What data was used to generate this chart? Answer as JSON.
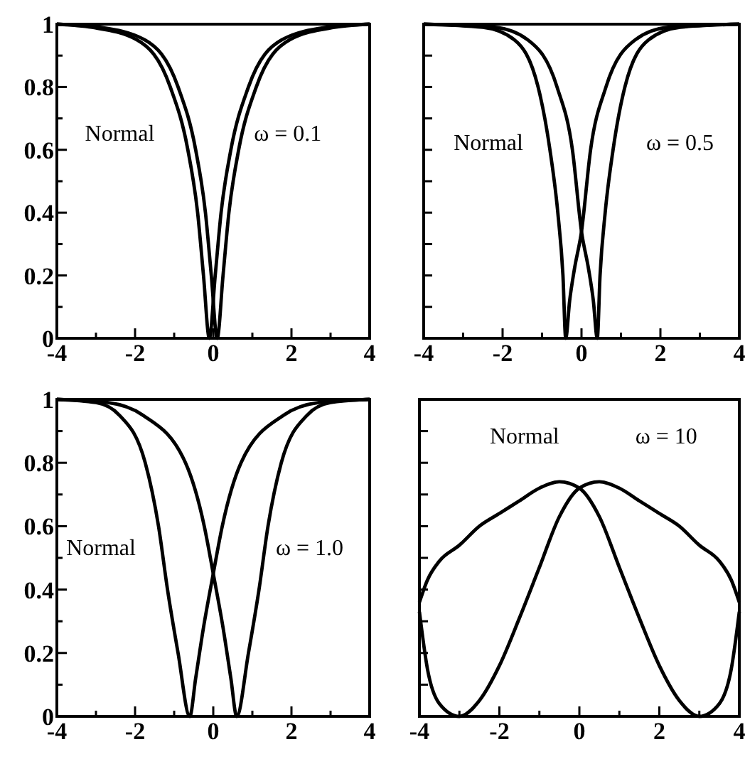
{
  "chart_data": [
    {
      "type": "line",
      "annotations": [
        "Normal",
        "ω = 0.1"
      ],
      "xlim": [
        -4,
        4
      ],
      "ylim": [
        0,
        1
      ],
      "xticks": [
        -4,
        {
          "value": -3,
          "label": null
        },
        -2,
        {
          "value": -1,
          "label": null
        },
        0,
        {
          "value": 1,
          "label": null
        },
        2,
        {
          "value": 3,
          "label": null
        },
        4
      ],
      "yticks": [
        0,
        {
          "value": 0.1,
          "label": null
        },
        0.2,
        {
          "value": 0.3,
          "label": null
        },
        0.4,
        {
          "value": 0.5,
          "label": null
        },
        0.6,
        {
          "value": 0.7,
          "label": null
        },
        0.8,
        {
          "value": 0.9,
          "label": null
        },
        1
      ],
      "series": [
        {
          "color": "#000000",
          "x": [
            -4,
            -3.1,
            -1.95,
            -1.1,
            -0.65,
            -0.4,
            -0.25,
            -0.1,
            0.05,
            0.2,
            0.45,
            0.9,
            1.75,
            2.9,
            4
          ],
          "values": [
            1,
            0.99,
            0.95,
            0.8,
            0.6,
            0.4,
            0.2,
            0,
            0.2,
            0.4,
            0.6,
            0.8,
            0.95,
            0.99,
            1
          ]
        },
        {
          "color": "#000000",
          "x": [
            -4,
            -2.9,
            -1.75,
            -0.9,
            -0.45,
            -0.2,
            -0.05,
            0.1,
            0.25,
            0.4,
            0.65,
            1.1,
            1.95,
            3.1,
            4
          ],
          "values": [
            1,
            0.99,
            0.95,
            0.8,
            0.6,
            0.4,
            0.2,
            0,
            0.2,
            0.4,
            0.6,
            0.8,
            0.95,
            0.99,
            1
          ]
        }
      ]
    },
    {
      "type": "line",
      "annotations": [
        "Normal",
        "ω = 0.5"
      ],
      "tick_labels": "x",
      "xlim": [
        -4,
        4
      ],
      "ylim": [
        0,
        1
      ],
      "xticks": [
        -4,
        {
          "value": -3,
          "label": null
        },
        -2,
        {
          "value": -1,
          "label": null
        },
        0,
        {
          "value": 1,
          "label": null
        },
        2,
        {
          "value": 3,
          "label": null
        },
        4
      ],
      "yticks": [
        {
          "value": 0,
          "label": null
        },
        {
          "value": 0.1,
          "label": null
        },
        {
          "value": 0.2,
          "label": null
        },
        {
          "value": 0.3,
          "label": null
        },
        {
          "value": 0.4,
          "label": null
        },
        {
          "value": 0.5,
          "label": null
        },
        {
          "value": 0.6,
          "label": null
        },
        {
          "value": 0.7,
          "label": null
        },
        {
          "value": 0.8,
          "label": null
        },
        {
          "value": 0.9,
          "label": null
        },
        {
          "value": 1,
          "label": null
        }
      ],
      "series": [
        {
          "color": "#000000",
          "x": [
            -4,
            -2.5,
            -1.7,
            -1.1,
            -0.8,
            -0.6,
            -0.47,
            -0.4,
            -0.3,
            -0.18,
            0,
            0.23,
            0.62,
            1.36,
            2.2,
            4
          ],
          "values": [
            1,
            0.99,
            0.95,
            0.8,
            0.6,
            0.4,
            0.2,
            0,
            0.12,
            0.22,
            0.34,
            0.6,
            0.8,
            0.95,
            0.99,
            1
          ]
        },
        {
          "color": "#000000",
          "x": [
            -4,
            -2.2,
            -1.36,
            -0.62,
            -0.23,
            0,
            0.18,
            0.3,
            0.4,
            0.47,
            0.6,
            0.8,
            1.1,
            1.7,
            2.5,
            4
          ],
          "values": [
            1,
            0.99,
            0.95,
            0.8,
            0.6,
            0.34,
            0.22,
            0.12,
            0,
            0.2,
            0.4,
            0.6,
            0.8,
            0.95,
            0.99,
            1
          ]
        }
      ]
    },
    {
      "type": "line",
      "annotations": [
        "Normal",
        "ω = 1.0"
      ],
      "xlim": [
        -4,
        4
      ],
      "ylim": [
        0,
        1
      ],
      "xticks": [
        -4,
        {
          "value": -3,
          "label": null
        },
        -2,
        {
          "value": -1,
          "label": null
        },
        0,
        {
          "value": 1,
          "label": null
        },
        2,
        {
          "value": 3,
          "label": null
        },
        4
      ],
      "yticks": [
        0,
        {
          "value": 0.1,
          "label": null
        },
        0.2,
        {
          "value": 0.3,
          "label": null
        },
        0.4,
        {
          "value": 0.5,
          "label": null
        },
        0.6,
        {
          "value": 0.7,
          "label": null
        },
        0.8,
        {
          "value": 0.9,
          "label": null
        },
        1
      ],
      "series": [
        {
          "color": "#000000",
          "x": [
            -4,
            -3,
            -2.4,
            -1.74,
            -1.4,
            -1.17,
            -0.9,
            -0.6,
            -0.45,
            -0.25,
            0,
            0.23,
            0.71,
            1.8,
            2.7,
            4
          ],
          "values": [
            1,
            0.99,
            0.95,
            0.8,
            0.6,
            0.4,
            0.2,
            0,
            0.12,
            0.28,
            0.45,
            0.6,
            0.8,
            0.95,
            0.99,
            1
          ]
        },
        {
          "color": "#000000",
          "x": [
            -4,
            -2.7,
            -1.8,
            -0.71,
            -0.23,
            0,
            0.25,
            0.45,
            0.6,
            0.9,
            1.17,
            1.4,
            1.74,
            2.4,
            3,
            4
          ],
          "values": [
            1,
            0.99,
            0.95,
            0.8,
            0.6,
            0.45,
            0.28,
            0.12,
            0,
            0.2,
            0.4,
            0.6,
            0.8,
            0.95,
            0.99,
            1
          ]
        }
      ]
    },
    {
      "type": "line",
      "annotations": [
        "Normal",
        "ω = 10"
      ],
      "tick_labels": "x",
      "xlim": [
        -4,
        4
      ],
      "ylim": [
        0,
        1
      ],
      "xticks": [
        -4,
        {
          "value": -3,
          "label": null
        },
        -2,
        {
          "value": -1,
          "label": null
        },
        0,
        {
          "value": 1,
          "label": null
        },
        2,
        {
          "value": 3,
          "label": null
        },
        4
      ],
      "yticks": [
        {
          "value": 0,
          "label": null
        },
        {
          "value": 0.1,
          "label": null
        },
        {
          "value": 0.2,
          "label": null
        },
        {
          "value": 0.3,
          "label": null
        },
        {
          "value": 0.4,
          "label": null
        },
        {
          "value": 0.5,
          "label": null
        },
        {
          "value": 0.6,
          "label": null
        },
        {
          "value": 0.7,
          "label": null
        },
        {
          "value": 0.8,
          "label": null
        },
        {
          "value": 0.9,
          "label": null
        },
        {
          "value": 1,
          "label": null
        }
      ],
      "series": [
        {
          "color": "#000000",
          "x": [
            -4,
            -3.8,
            -3.5,
            -3,
            -2.5,
            -2,
            -1.5,
            -1,
            -0.5,
            0,
            0.5,
            1,
            1.5,
            2,
            2.5,
            3,
            3.5,
            3.8,
            4
          ],
          "values": [
            0.36,
            0.43,
            0.49,
            0.54,
            0.6,
            0.64,
            0.68,
            0.72,
            0.74,
            0.72,
            0.63,
            0.47,
            0.31,
            0.16,
            0.05,
            0,
            0.04,
            0.15,
            0.33
          ]
        },
        {
          "color": "#000000",
          "x": [
            -4,
            -3.8,
            -3.5,
            -3,
            -2.5,
            -2,
            -1.5,
            -1,
            -0.5,
            0,
            0.5,
            1,
            1.5,
            2,
            2.5,
            3,
            3.5,
            3.8,
            4
          ],
          "values": [
            0.33,
            0.15,
            0.04,
            0,
            0.05,
            0.16,
            0.31,
            0.47,
            0.63,
            0.72,
            0.74,
            0.72,
            0.68,
            0.64,
            0.6,
            0.54,
            0.49,
            0.43,
            0.36
          ]
        }
      ]
    }
  ]
}
